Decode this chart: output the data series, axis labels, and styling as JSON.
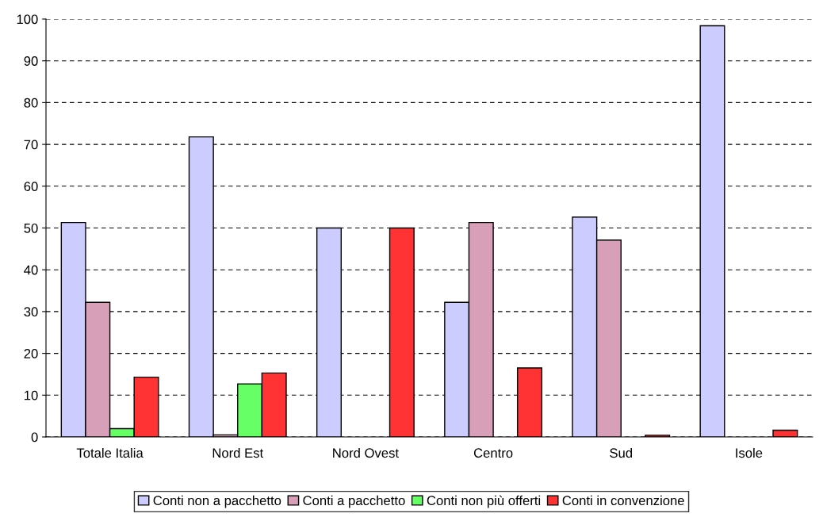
{
  "chart_data": {
    "type": "bar",
    "categories": [
      "Totale Italia",
      "Nord Est",
      "Nord Ovest",
      "Centro",
      "Sud",
      "Isole"
    ],
    "series": [
      {
        "name": "Conti non a pacchetto",
        "color": "#ccccff",
        "values": [
          51.3,
          71.8,
          50,
          32.2,
          52.6,
          98.4
        ]
      },
      {
        "name": "Conti a pacchetto",
        "color": "#d8a0b8",
        "values": [
          32.2,
          0.5,
          0,
          51.3,
          47.1,
          0
        ]
      },
      {
        "name": "Conti non più offerti",
        "color": "#66ff66",
        "values": [
          2,
          12.7,
          0,
          0,
          0,
          0
        ]
      },
      {
        "name": "Conti in convenzione",
        "color": "#ff3333",
        "values": [
          14.3,
          15.3,
          50,
          16.5,
          0.4,
          1.6
        ]
      }
    ],
    "ylim": [
      0,
      100
    ],
    "yticks": [
      0,
      10,
      20,
      30,
      40,
      50,
      60,
      70,
      80,
      90,
      100
    ],
    "grid": "y",
    "legend": "bottom"
  }
}
